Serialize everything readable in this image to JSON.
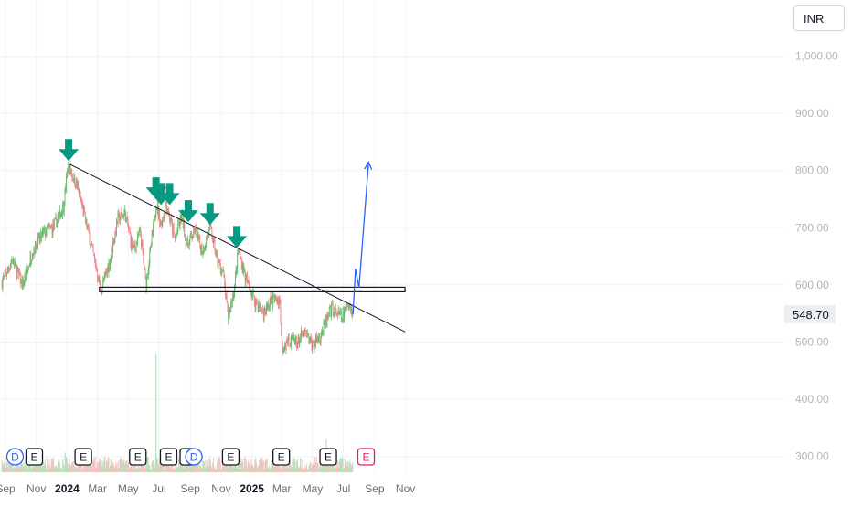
{
  "currency": "INR",
  "price_label": "548.70",
  "chart_data": {
    "type": "candlestick",
    "y_axis": {
      "ticks": [
        "1,000.00",
        "900.00",
        "800.00",
        "700.00",
        "600.00",
        "500.00",
        "400.00",
        "300.00"
      ],
      "tick_values": [
        1000,
        900,
        800,
        700,
        600,
        500,
        400,
        300
      ],
      "ylim": [
        285,
        1070
      ]
    },
    "x_axis": {
      "ticks": [
        "Sep",
        "Nov",
        "2024",
        "Mar",
        "May",
        "Jul",
        "Sep",
        "Nov",
        "2025",
        "Mar",
        "May",
        "Jul",
        "Sep",
        "Nov"
      ],
      "bold_ticks": [
        "2024",
        "2025"
      ],
      "tick_dates": [
        "2023-09-01",
        "2023-11-01",
        "2024-01-01",
        "2024-03-01",
        "2024-05-01",
        "2024-07-01",
        "2024-09-01",
        "2024-11-01",
        "2025-01-01",
        "2025-03-01",
        "2025-05-01",
        "2025-07-01",
        "2025-09-01",
        "2025-11-01"
      ]
    },
    "price_path": [
      [
        "2023-08-25",
        605
      ],
      [
        "2023-09-15",
        645
      ],
      [
        "2023-10-05",
        598
      ],
      [
        "2023-10-25",
        660
      ],
      [
        "2023-11-15",
        690
      ],
      [
        "2023-12-05",
        700
      ],
      [
        "2023-12-25",
        740
      ],
      [
        "2024-01-03",
        810
      ],
      [
        "2024-01-20",
        775
      ],
      [
        "2024-02-10",
        700
      ],
      [
        "2024-02-25",
        640
      ],
      [
        "2024-03-08",
        590
      ],
      [
        "2024-03-25",
        640
      ],
      [
        "2024-04-10",
        715
      ],
      [
        "2024-04-25",
        725
      ],
      [
        "2024-05-10",
        660
      ],
      [
        "2024-05-25",
        690
      ],
      [
        "2024-06-05",
        600
      ],
      [
        "2024-06-20",
        700
      ],
      [
        "2024-06-25",
        745
      ],
      [
        "2024-07-05",
        705
      ],
      [
        "2024-07-15",
        745
      ],
      [
        "2024-08-01",
        680
      ],
      [
        "2024-08-15",
        720
      ],
      [
        "2024-08-25",
        670
      ],
      [
        "2024-09-10",
        695
      ],
      [
        "2024-09-25",
        660
      ],
      [
        "2024-10-10",
        700
      ],
      [
        "2024-10-25",
        640
      ],
      [
        "2024-11-05",
        620
      ],
      [
        "2024-11-15",
        540
      ],
      [
        "2024-11-28",
        600
      ],
      [
        "2024-12-05",
        660
      ],
      [
        "2024-12-20",
        610
      ],
      [
        "2025-01-05",
        575
      ],
      [
        "2025-01-25",
        550
      ],
      [
        "2025-02-10",
        575
      ],
      [
        "2025-02-25",
        575
      ],
      [
        "2025-03-01",
        490
      ],
      [
        "2025-03-15",
        505
      ],
      [
        "2025-04-01",
        500
      ],
      [
        "2025-04-15",
        515
      ],
      [
        "2025-05-01",
        495
      ],
      [
        "2025-05-15",
        510
      ],
      [
        "2025-05-28",
        535
      ],
      [
        "2025-06-10",
        560
      ],
      [
        "2025-06-28",
        540
      ],
      [
        "2025-07-10",
        570
      ],
      [
        "2025-07-20",
        548.7
      ]
    ],
    "volume_spikes": [
      [
        "2024-06-25",
        3.6
      ],
      [
        "2025-05-28",
        1.0
      ],
      [
        "2024-12-05",
        0.55
      ],
      [
        "2023-12-28",
        0.6
      ]
    ],
    "down_arrows": [
      [
        "2024-01-04",
        812
      ],
      [
        "2024-06-25",
        745
      ],
      [
        "2024-07-05",
        735
      ],
      [
        "2024-07-22",
        735
      ],
      [
        "2024-08-28",
        705
      ],
      [
        "2024-10-10",
        700
      ],
      [
        "2024-12-02",
        660
      ]
    ],
    "trendline": {
      "from": [
        "2024-01-04",
        812
      ],
      "to": [
        "2025-10-31",
        518
      ]
    },
    "support_zone": {
      "from": "2024-03-05",
      "to": "2025-10-31",
      "low": 588,
      "high": 596
    },
    "projection": [
      [
        "2025-07-20",
        548.7
      ],
      [
        "2025-07-25",
        628
      ],
      [
        "2025-08-01",
        595
      ],
      [
        "2025-08-20",
        815
      ]
    ],
    "event_markers": [
      {
        "date": "2023-09-20",
        "label": "D"
      },
      {
        "date": "2023-10-28",
        "label": "E"
      },
      {
        "date": "2024-02-02",
        "label": "E"
      },
      {
        "date": "2024-05-20",
        "label": "E"
      },
      {
        "date": "2024-07-20",
        "label": "E"
      },
      {
        "date": "2024-08-28",
        "label": "E"
      },
      {
        "date": "2024-09-08",
        "label": "D"
      },
      {
        "date": "2024-11-20",
        "label": "E"
      },
      {
        "date": "2025-02-28",
        "label": "E"
      },
      {
        "date": "2025-06-01",
        "label": "E"
      },
      {
        "date": "2025-08-15",
        "label": "E"
      }
    ],
    "colors": {
      "up": "#66bb6a",
      "down": "#ef8a8a",
      "arrow": "#089981",
      "projection": "#2962ff",
      "trendline": "#131722",
      "marker_D": "#2962ff",
      "marker_E": "#131722",
      "marker_future": "#e91e63"
    }
  }
}
